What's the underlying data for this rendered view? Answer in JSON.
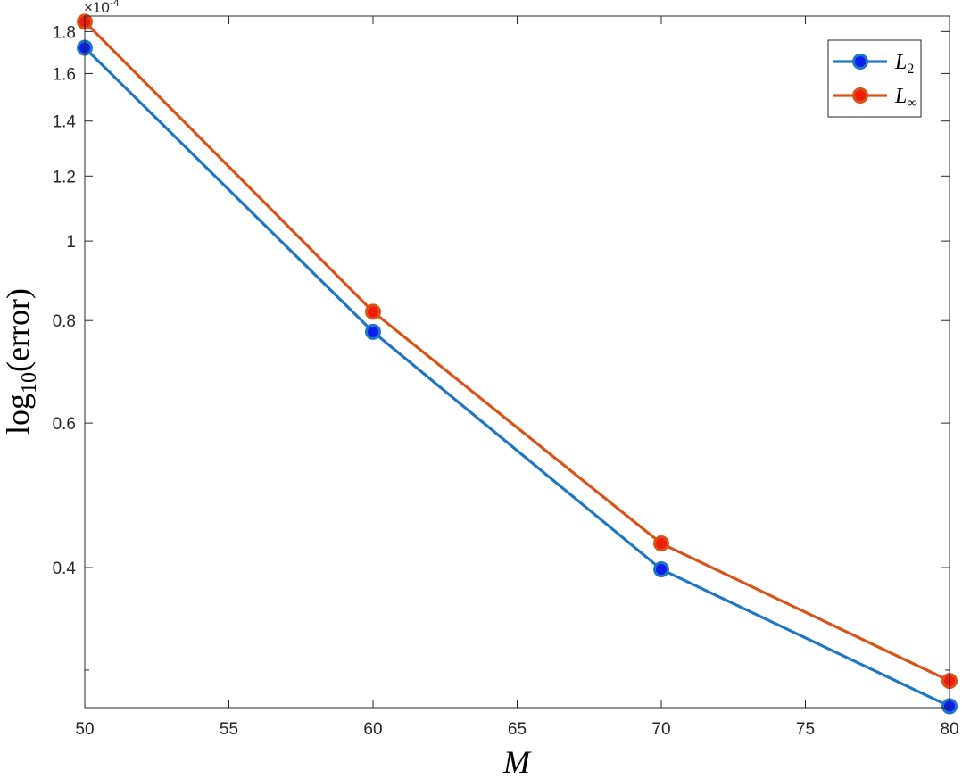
{
  "chart_data": {
    "type": "line",
    "xlabel": "M",
    "ylabel": "log10(error)",
    "ylabel_parts": {
      "pre": "log",
      "sub": "10",
      "post": "(error)"
    },
    "y_exponent_label": {
      "base": "×10",
      "exp": "-4"
    },
    "y_scale": "log",
    "xlim": [
      50,
      80
    ],
    "ylim": [
      2.7e-05,
      0.000188
    ],
    "x_ticks": [
      50,
      55,
      60,
      65,
      70,
      75,
      80
    ],
    "x_tick_labels": [
      "50",
      "55",
      "60",
      "65",
      "70",
      "75",
      "80"
    ],
    "y_ticks": [
      4e-05,
      6e-05,
      8e-05,
      0.0001,
      0.00012,
      0.00014,
      0.00016,
      0.00018
    ],
    "y_tick_labels": [
      "0.4",
      "0.6",
      "0.8",
      "1",
      "1.2",
      "1.4",
      "1.6",
      "1.8"
    ],
    "y_minor_ticks": [
      3e-05
    ],
    "grid": false,
    "legend_position": "top-right",
    "x": [
      50,
      60,
      70,
      80
    ],
    "series": [
      {
        "name": "L2",
        "label_base": "L",
        "label_sub": "2",
        "line_color": "#1f77c4",
        "marker_fill": "#0a1ef0",
        "values": [
          0.000172,
          7.75e-05,
          3.98e-05,
          2.71e-05
        ]
      },
      {
        "name": "L∞",
        "label_base": "L",
        "label_sub": "∞",
        "line_color": "#d95319",
        "marker_fill": "#f01c0a",
        "values": [
          0.000185,
          8.2e-05,
          4.28e-05,
          2.91e-05
        ]
      }
    ]
  }
}
